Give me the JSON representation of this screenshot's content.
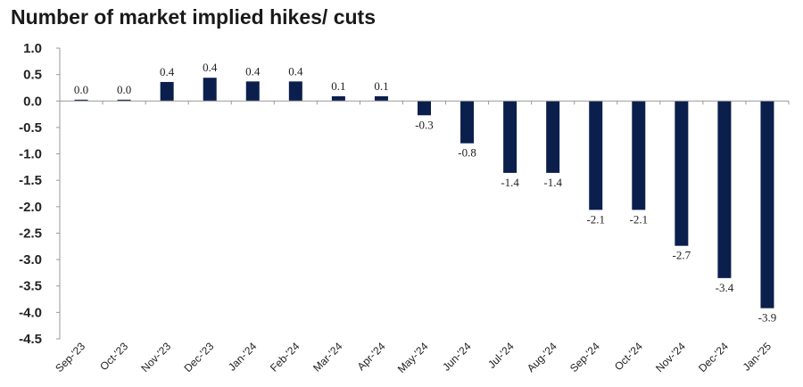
{
  "chart_data": {
    "type": "bar",
    "title": "Number of market implied hikes/ cuts",
    "xlabel": "",
    "ylabel": "",
    "ylim": [
      -4.5,
      1.0
    ],
    "yticks": [
      1.0,
      0.5,
      0.0,
      -0.5,
      -1.0,
      -1.5,
      -2.0,
      -2.5,
      -3.0,
      -3.5,
      -4.0,
      -4.5
    ],
    "ytick_labels": [
      "1.0",
      "0.5",
      "0.0",
      "-0.5",
      "-1.0",
      "-1.5",
      "-2.0",
      "-2.5",
      "-3.0",
      "-3.5",
      "-4.0",
      "-4.5"
    ],
    "grid": false,
    "legend": "none",
    "categories": [
      "Sep-'23",
      "Oct-'23",
      "Nov-'23",
      "Dec-'23",
      "Jan-'24",
      "Feb-'24",
      "Mar-'24",
      "Apr-'24",
      "May-'24",
      "Jun-'24",
      "Jul-'24",
      "Aug-'24",
      "Sep-'24",
      "Oct-'24",
      "Nov-'24",
      "Dec-'24",
      "Jan-'25"
    ],
    "values": [
      0.02,
      0.02,
      0.36,
      0.44,
      0.37,
      0.37,
      0.09,
      0.09,
      -0.27,
      -0.8,
      -1.36,
      -1.36,
      -2.06,
      -2.06,
      -2.74,
      -3.35,
      -3.92
    ],
    "data_labels": [
      "0.0",
      "0.0",
      "0.4",
      "0.4",
      "0.4",
      "0.4",
      "0.1",
      "0.1",
      "-0.3",
      "-0.8",
      "-1.4",
      "-1.4",
      "-2.1",
      "-2.1",
      "-2.7",
      "-3.4",
      "-3.9"
    ],
    "bar_color": "#0b1f4d",
    "axis_color": "#999999"
  }
}
